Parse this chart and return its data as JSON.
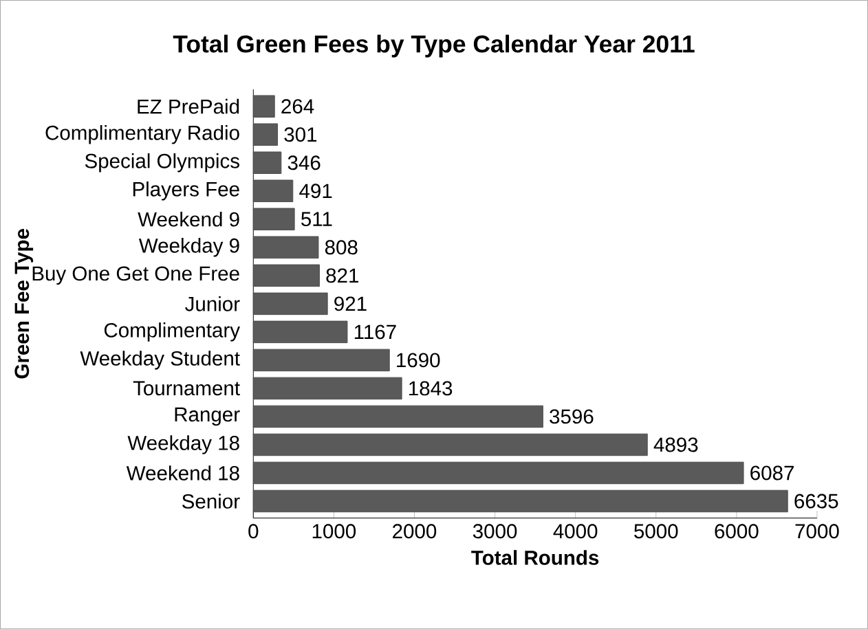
{
  "chart_data": {
    "type": "bar",
    "orientation": "horizontal",
    "title": "Total Green Fees by Type Calendar Year 2011",
    "xlabel": "Total Rounds",
    "ylabel": "Green Fee Type",
    "categories": [
      "EZ PrePaid",
      "Complimentary Radio",
      "Special Olympics",
      "Players Fee",
      "Weekend 9",
      "Weekday 9",
      "Buy One Get One Free",
      "Junior",
      "Complimentary",
      "Weekday Student",
      "Tournament",
      "Ranger",
      "Weekday 18",
      "Weekend 18",
      "Senior"
    ],
    "values": [
      264,
      301,
      346,
      491,
      511,
      808,
      821,
      921,
      1167,
      1690,
      1843,
      3596,
      4893,
      6087,
      6635
    ],
    "color": "#5a5a5a",
    "data_labels": true,
    "grid": false,
    "xlim": [
      0,
      7000
    ],
    "xticks": [
      0,
      1000,
      2000,
      3000,
      4000,
      5000,
      6000,
      7000
    ]
  }
}
